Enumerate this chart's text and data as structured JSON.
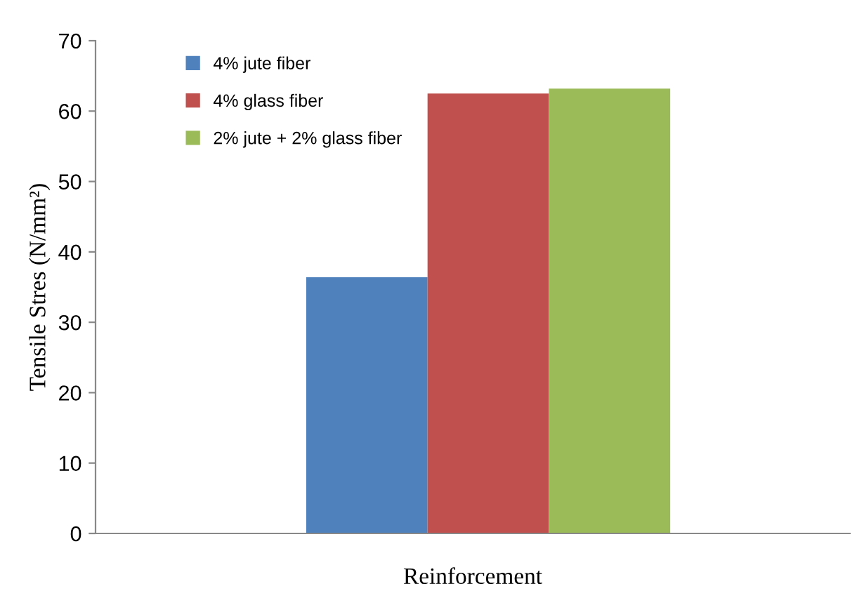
{
  "chart_data": {
    "type": "bar",
    "xlabel": "Reinforcement",
    "ylabel": "Tensile Stres (N/mm²)",
    "categories": [
      null
    ],
    "series": [
      {
        "name": "4% jute fiber",
        "color": "#4f81bd",
        "values": [
          36.4
        ]
      },
      {
        "name": "4% glass fiber",
        "color": "#c0504d",
        "values": [
          62.5
        ]
      },
      {
        "name": "2% jute + 2% glass fiber",
        "color": "#9bbb59",
        "values": [
          63.2
        ]
      }
    ],
    "ylim": [
      0,
      70
    ],
    "yticks": [
      0,
      10,
      20,
      30,
      40,
      50,
      60,
      70
    ],
    "grid": false,
    "legend": "top left"
  }
}
